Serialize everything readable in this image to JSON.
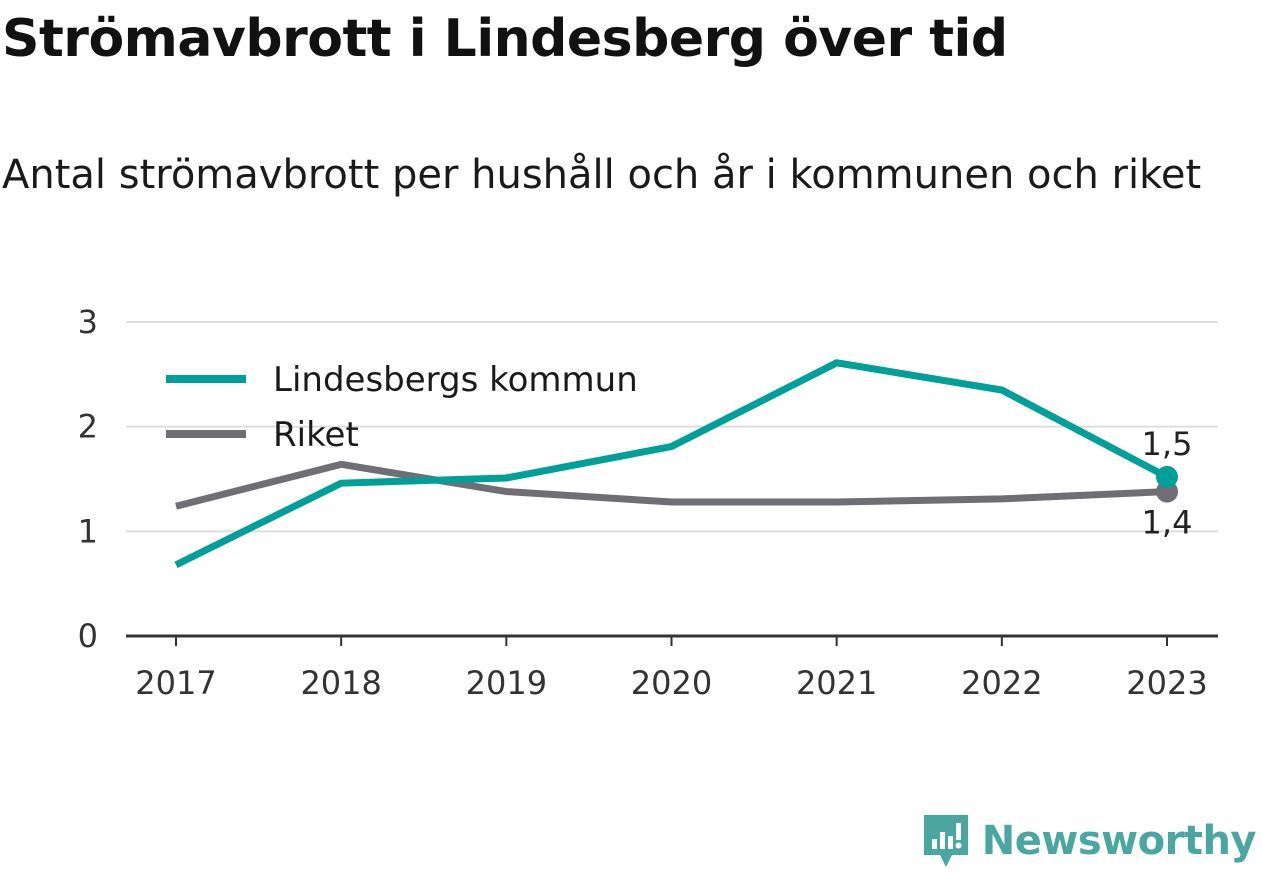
{
  "title": "Strömavbrott i Lindesberg över tid",
  "subtitle": "Antal strömavbrott per hushåll och år i kommunen och riket",
  "colors": {
    "lindesberg": "#00a098",
    "riket": "#6e6e74",
    "grid": "#dddddd",
    "axis": "#333333",
    "brand": "#4aa6a0"
  },
  "chart_data": {
    "type": "line",
    "title": "Strömavbrott i Lindesberg över tid",
    "subtitle": "Antal strömavbrott per hushåll och år i kommunen och riket",
    "xlabel": "",
    "ylabel": "",
    "x": [
      "2017",
      "2018",
      "2019",
      "2020",
      "2021",
      "2022",
      "2023"
    ],
    "ylim": [
      0,
      3
    ],
    "yticks": [
      "0",
      "1",
      "2",
      "3"
    ],
    "grid": true,
    "legend_position": "top-left",
    "series": [
      {
        "name": "Lindesbergs kommun",
        "color": "#00a098",
        "values": [
          0.68,
          1.46,
          1.51,
          1.81,
          2.61,
          2.35,
          1.52
        ]
      },
      {
        "name": "Riket",
        "color": "#6e6e74",
        "values": [
          1.24,
          1.64,
          1.38,
          1.28,
          1.28,
          1.31,
          1.38
        ]
      }
    ],
    "end_labels": [
      "1,5",
      "1,4"
    ]
  },
  "brand": {
    "name": "Newsworthy",
    "icon": "bar-chart-badge-icon"
  }
}
